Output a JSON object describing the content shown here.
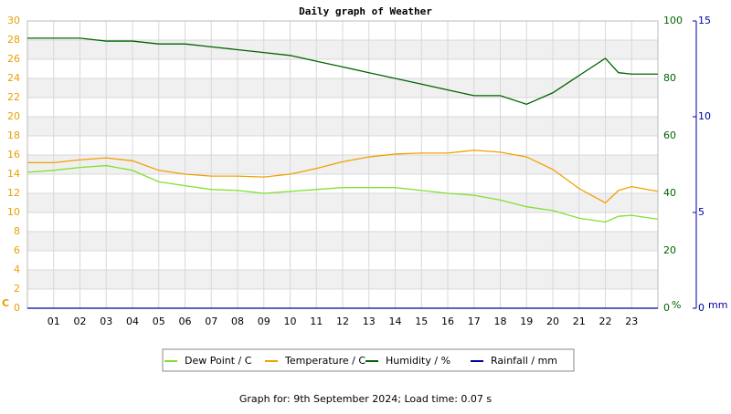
{
  "chart_data": {
    "type": "line",
    "title": "Daily graph of Weather",
    "x": [
      0,
      1,
      2,
      3,
      4,
      5,
      6,
      7,
      8,
      9,
      10,
      11,
      12,
      13,
      14,
      15,
      16,
      17,
      18,
      19,
      20,
      21,
      22,
      22.5,
      23,
      24
    ],
    "xlim": [
      0,
      24
    ],
    "xticks": [
      {
        "value": 1,
        "label": "01"
      },
      {
        "value": 2,
        "label": "02"
      },
      {
        "value": 3,
        "label": "03"
      },
      {
        "value": 4,
        "label": "04"
      },
      {
        "value": 5,
        "label": "05"
      },
      {
        "value": 6,
        "label": "06"
      },
      {
        "value": 7,
        "label": "07"
      },
      {
        "value": 8,
        "label": "08"
      },
      {
        "value": 9,
        "label": "09"
      },
      10,
      11,
      12,
      13,
      14,
      15,
      16,
      17,
      18,
      19,
      20,
      21,
      22,
      23
    ],
    "ylim": [
      0,
      30
    ],
    "yticks": [
      0,
      2,
      4,
      6,
      8,
      10,
      12,
      14,
      16,
      18,
      20,
      22,
      24,
      26,
      28,
      30
    ],
    "y_label": "C",
    "y_color": "#e8a000",
    "y2lim": [
      0,
      100
    ],
    "y2ticks": [
      0,
      20,
      40,
      60,
      80,
      100
    ],
    "y2_label": "%",
    "y2_color": "#006400",
    "y3lim": [
      0,
      15
    ],
    "y3ticks": [
      0,
      5,
      10,
      15
    ],
    "y3_label": "mm",
    "y3_color": "#0000a0",
    "grid": true,
    "series": [
      {
        "name": "Dew Point / C",
        "color": "#80e030",
        "values": [
          14.2,
          14.4,
          14.7,
          14.9,
          14.4,
          13.2,
          12.8,
          12.4,
          12.3,
          12.0,
          12.2,
          12.4,
          12.6,
          12.6,
          12.6,
          12.3,
          12.0,
          11.8,
          11.3,
          10.6,
          10.2,
          9.4,
          9.0,
          9.6,
          9.7,
          9.3
        ]
      },
      {
        "name": "Temperature / C",
        "color": "#f0a000",
        "values": [
          15.2,
          15.2,
          15.5,
          15.7,
          15.4,
          14.4,
          14.0,
          13.8,
          13.8,
          13.7,
          14.0,
          14.6,
          15.3,
          15.8,
          16.1,
          16.2,
          16.2,
          16.5,
          16.3,
          15.8,
          14.5,
          12.5,
          11.0,
          12.3,
          12.7,
          12.2
        ]
      },
      {
        "name": "Humidity / %",
        "color": "#006400",
        "axis": "y2",
        "values": [
          94,
          94,
          94,
          93,
          93,
          92,
          92,
          91,
          90,
          89,
          88,
          86,
          84,
          82,
          80,
          78,
          76,
          74,
          74,
          71,
          75,
          81,
          87,
          82,
          81.5,
          81.5
        ]
      },
      {
        "name": "Rainfall / mm",
        "color": "#0000a0",
        "axis": "y3",
        "values": [
          0,
          0,
          0,
          0,
          0,
          0,
          0,
          0,
          0,
          0,
          0,
          0,
          0,
          0,
          0,
          0,
          0,
          0,
          0,
          0,
          0,
          0,
          0,
          0,
          0,
          0
        ]
      }
    ],
    "footer": "Graph for: 9th September 2024; Load time: 0.07 s"
  }
}
